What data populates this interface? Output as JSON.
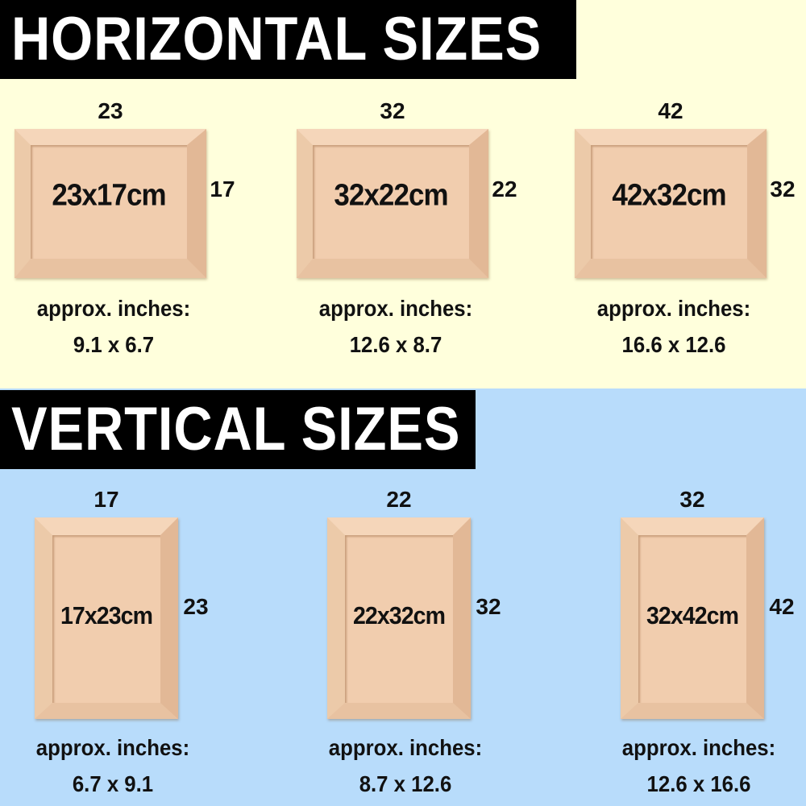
{
  "horizontal": {
    "title": "HORIZONTAL SIZES",
    "items": [
      {
        "width": "23",
        "height": "17",
        "size": "23x17cm",
        "approx_label": "approx. inches:",
        "inches": "9.1 x 6.7"
      },
      {
        "width": "32",
        "height": "22",
        "size": "32x22cm",
        "approx_label": "approx. inches:",
        "inches": "12.6 x 8.7"
      },
      {
        "width": "42",
        "height": "32",
        "size": "42x32cm",
        "approx_label": "approx. inches:",
        "inches": "16.6 x 12.6"
      }
    ]
  },
  "vertical": {
    "title": "VERTICAL SIZES",
    "items": [
      {
        "width": "17",
        "height": "23",
        "size": "17x23cm",
        "approx_label": "approx. inches:",
        "inches": "6.7 x 9.1"
      },
      {
        "width": "22",
        "height": "32",
        "size": "22x32cm",
        "approx_label": "approx. inches:",
        "inches": "8.7 x 12.6"
      },
      {
        "width": "32",
        "height": "42",
        "size": "32x42cm",
        "approx_label": "approx. inches:",
        "inches": "12.6 x 16.6"
      }
    ]
  },
  "colors": {
    "top_background": "#ffffdc",
    "bottom_background": "#b8dcfb",
    "banner": "#000000",
    "frame_wood": "#f1cdae"
  }
}
